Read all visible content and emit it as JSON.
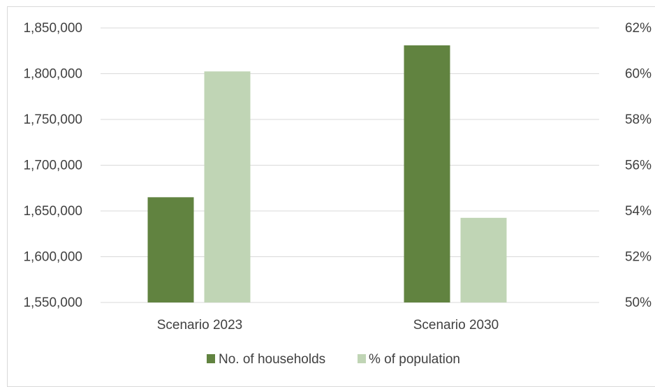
{
  "chart_data": {
    "type": "bar",
    "categories": [
      "Scenario 2023",
      "Scenario 2030"
    ],
    "series": [
      {
        "name": "No. of households",
        "axis": "left",
        "color": "#618340",
        "values": [
          1665000,
          1831000
        ]
      },
      {
        "name": "% of population",
        "axis": "right",
        "color": "#c0d5b5",
        "values": [
          60.1,
          53.7
        ]
      }
    ],
    "y_left": {
      "min": 1550000,
      "max": 1850000,
      "ticks": [
        1550000,
        1600000,
        1650000,
        1700000,
        1750000,
        1800000,
        1850000
      ],
      "tick_labels": [
        "1,550,000",
        "1,600,000",
        "1,650,000",
        "1,700,000",
        "1,750,000",
        "1,800,000",
        "1,850,000"
      ]
    },
    "y_right": {
      "min": 50,
      "max": 62,
      "ticks": [
        50,
        52,
        54,
        56,
        58,
        60,
        62
      ],
      "tick_labels": [
        "50%",
        "52%",
        "54%",
        "56%",
        "58%",
        "60%",
        "62%"
      ]
    },
    "grid": true,
    "legend_position": "bottom",
    "gridline_color": "#d9d9d9"
  }
}
